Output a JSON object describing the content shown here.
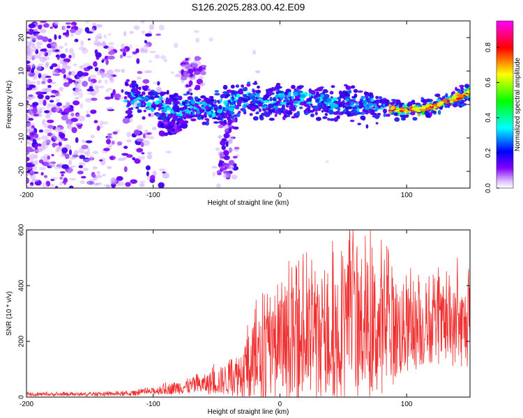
{
  "title": "S126.2025.283.00.42.E09",
  "chart_data": [
    {
      "type": "heatmap",
      "name": "spectrogram",
      "xlabel": "Height of straight line (km)",
      "ylabel": "Frequency (Hz)",
      "xlim": [
        -200,
        150
      ],
      "ylim": [
        -25,
        25
      ],
      "x_ticks": [
        -200,
        -100,
        0,
        100
      ],
      "y_ticks": [
        -20,
        -10,
        0,
        10,
        20
      ],
      "colorbar": {
        "label": "Normalized spectral amplitude",
        "range": [
          0,
          0.95
        ],
        "ticks": [
          0.0,
          0.2,
          0.4,
          0.6,
          0.8
        ],
        "tick_labels": [
          "0.0",
          "0.2",
          "0.4",
          "0.6",
          "0.8"
        ],
        "colors": [
          "#ffffff",
          "#8000ff",
          "#0000ff",
          "#00ffff",
          "#00ff00",
          "#ffff00",
          "#ff0000",
          "#ff00ff"
        ]
      },
      "signal_band_center": [
        {
          "x": -120,
          "y": 2.5
        },
        {
          "x": -100,
          "y": 0.5
        },
        {
          "x": -85,
          "y": -1.5
        },
        {
          "x": -70,
          "y": -0.5
        },
        {
          "x": -50,
          "y": -1.5
        },
        {
          "x": -40,
          "y": 0.5
        },
        {
          "x": -20,
          "y": 1.0
        },
        {
          "x": 0,
          "y": 1.0
        },
        {
          "x": 20,
          "y": 1.0
        },
        {
          "x": 40,
          "y": 0.5
        },
        {
          "x": 60,
          "y": 0.0
        },
        {
          "x": 80,
          "y": -0.5
        },
        {
          "x": 95,
          "y": -1.5
        },
        {
          "x": 110,
          "y": -1.5
        },
        {
          "x": 125,
          "y": 0.0
        },
        {
          "x": 140,
          "y": 2.0
        },
        {
          "x": 150,
          "y": 3.5
        }
      ]
    },
    {
      "type": "line",
      "name": "snr",
      "xlabel": "Height of straight line (km)",
      "ylabel": "SNR (10 * v/v)",
      "xlim": [
        -200,
        150
      ],
      "ylim": [
        0,
        600
      ],
      "x_ticks": [
        -200,
        -100,
        0,
        100
      ],
      "y_ticks": [
        0,
        200,
        400,
        600
      ],
      "color": "#f03030",
      "envelope": [
        {
          "x": -200,
          "mean": 10,
          "amp": 6
        },
        {
          "x": -150,
          "mean": 10,
          "amp": 6
        },
        {
          "x": -120,
          "mean": 12,
          "amp": 8
        },
        {
          "x": -100,
          "mean": 20,
          "amp": 12
        },
        {
          "x": -80,
          "mean": 35,
          "amp": 25
        },
        {
          "x": -60,
          "mean": 45,
          "amp": 35
        },
        {
          "x": -40,
          "mean": 65,
          "amp": 60
        },
        {
          "x": -30,
          "mean": 90,
          "amp": 90
        },
        {
          "x": -20,
          "mean": 120,
          "amp": 150
        },
        {
          "x": 0,
          "mean": 160,
          "amp": 200
        },
        {
          "x": 20,
          "mean": 200,
          "amp": 230
        },
        {
          "x": 40,
          "mean": 230,
          "amp": 250
        },
        {
          "x": 60,
          "mean": 250,
          "amp": 270
        },
        {
          "x": 80,
          "mean": 240,
          "amp": 230
        },
        {
          "x": 100,
          "mean": 240,
          "amp": 160
        },
        {
          "x": 120,
          "mean": 250,
          "amp": 130
        },
        {
          "x": 150,
          "mean": 250,
          "amp": 150
        }
      ],
      "peaks": [
        {
          "x": 55,
          "y": 600
        },
        {
          "x": 80,
          "y": 565
        },
        {
          "x": 42,
          "y": 520
        },
        {
          "x": 18,
          "y": 460
        },
        {
          "x": -10,
          "y": 370
        },
        {
          "x": 140,
          "y": 500
        },
        {
          "x": 125,
          "y": 465
        }
      ]
    }
  ]
}
